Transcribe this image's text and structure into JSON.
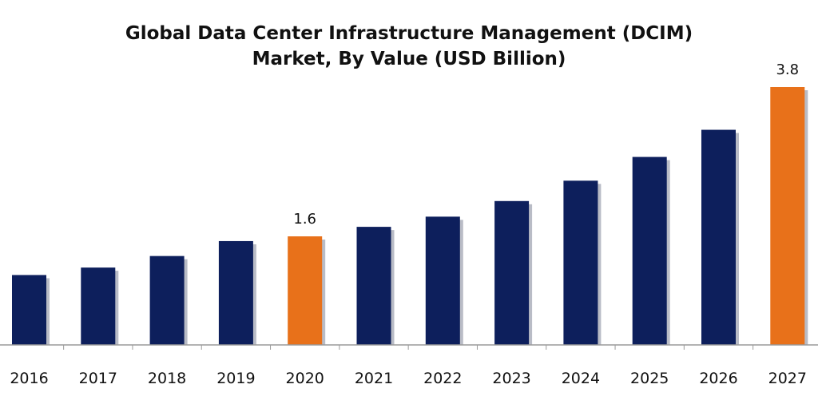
{
  "chart_data": {
    "type": "bar",
    "title_lines": [
      "Global Data Center Infrastructure Management (DCIM)",
      "Market, By Value (USD Billion)"
    ],
    "xlabel": "",
    "ylabel": "",
    "categories": [
      "2016",
      "2017",
      "2018",
      "2019",
      "2020",
      "2021",
      "2022",
      "2023",
      "2024",
      "2025",
      "2026",
      "2027"
    ],
    "values": [
      1.03,
      1.14,
      1.31,
      1.53,
      1.6,
      1.74,
      1.89,
      2.12,
      2.42,
      2.77,
      3.17,
      3.8
    ],
    "data_labels": {
      "2020": "1.6",
      "2027": "3.8"
    },
    "highlight": [
      "2020",
      "2027"
    ],
    "ylim": [
      0,
      4.0
    ],
    "grid": false,
    "legend": "none",
    "colors": {
      "default": "#0d1f5c",
      "highlight": "#e8711a",
      "shadow": "#b9bcc6",
      "axis": "#9a9a9a"
    }
  }
}
